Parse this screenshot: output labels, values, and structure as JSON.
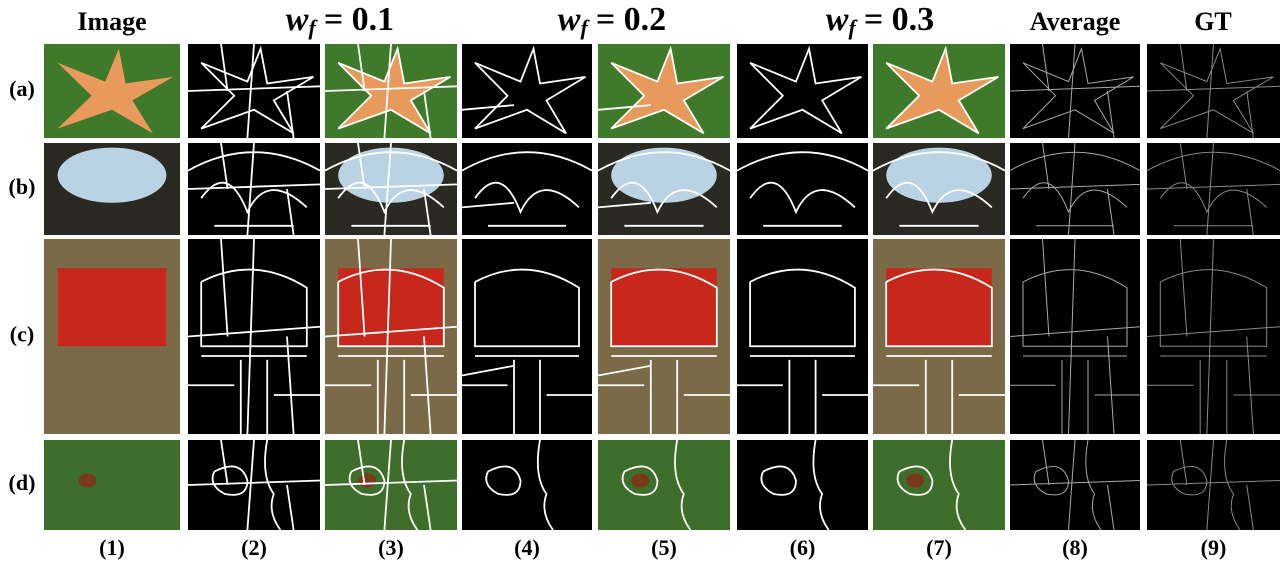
{
  "figure": {
    "column_headers": [
      {
        "text": "Image"
      },
      {
        "symbol": "w",
        "subscript": "f",
        "rest": "= 0.1"
      },
      {
        "symbol": "w",
        "subscript": "f",
        "rest": "= 0.2"
      },
      {
        "symbol": "w",
        "subscript": "f",
        "rest": "= 0.3"
      },
      {
        "text": "Average"
      },
      {
        "text": "GT"
      }
    ],
    "row_labels": [
      "(a)",
      "(b)",
      "(c)",
      "(d)"
    ],
    "column_labels": [
      "(1)",
      "(2)",
      "(3)",
      "(4)",
      "(5)",
      "(6)",
      "(7)",
      "(8)",
      "(9)"
    ]
  }
}
